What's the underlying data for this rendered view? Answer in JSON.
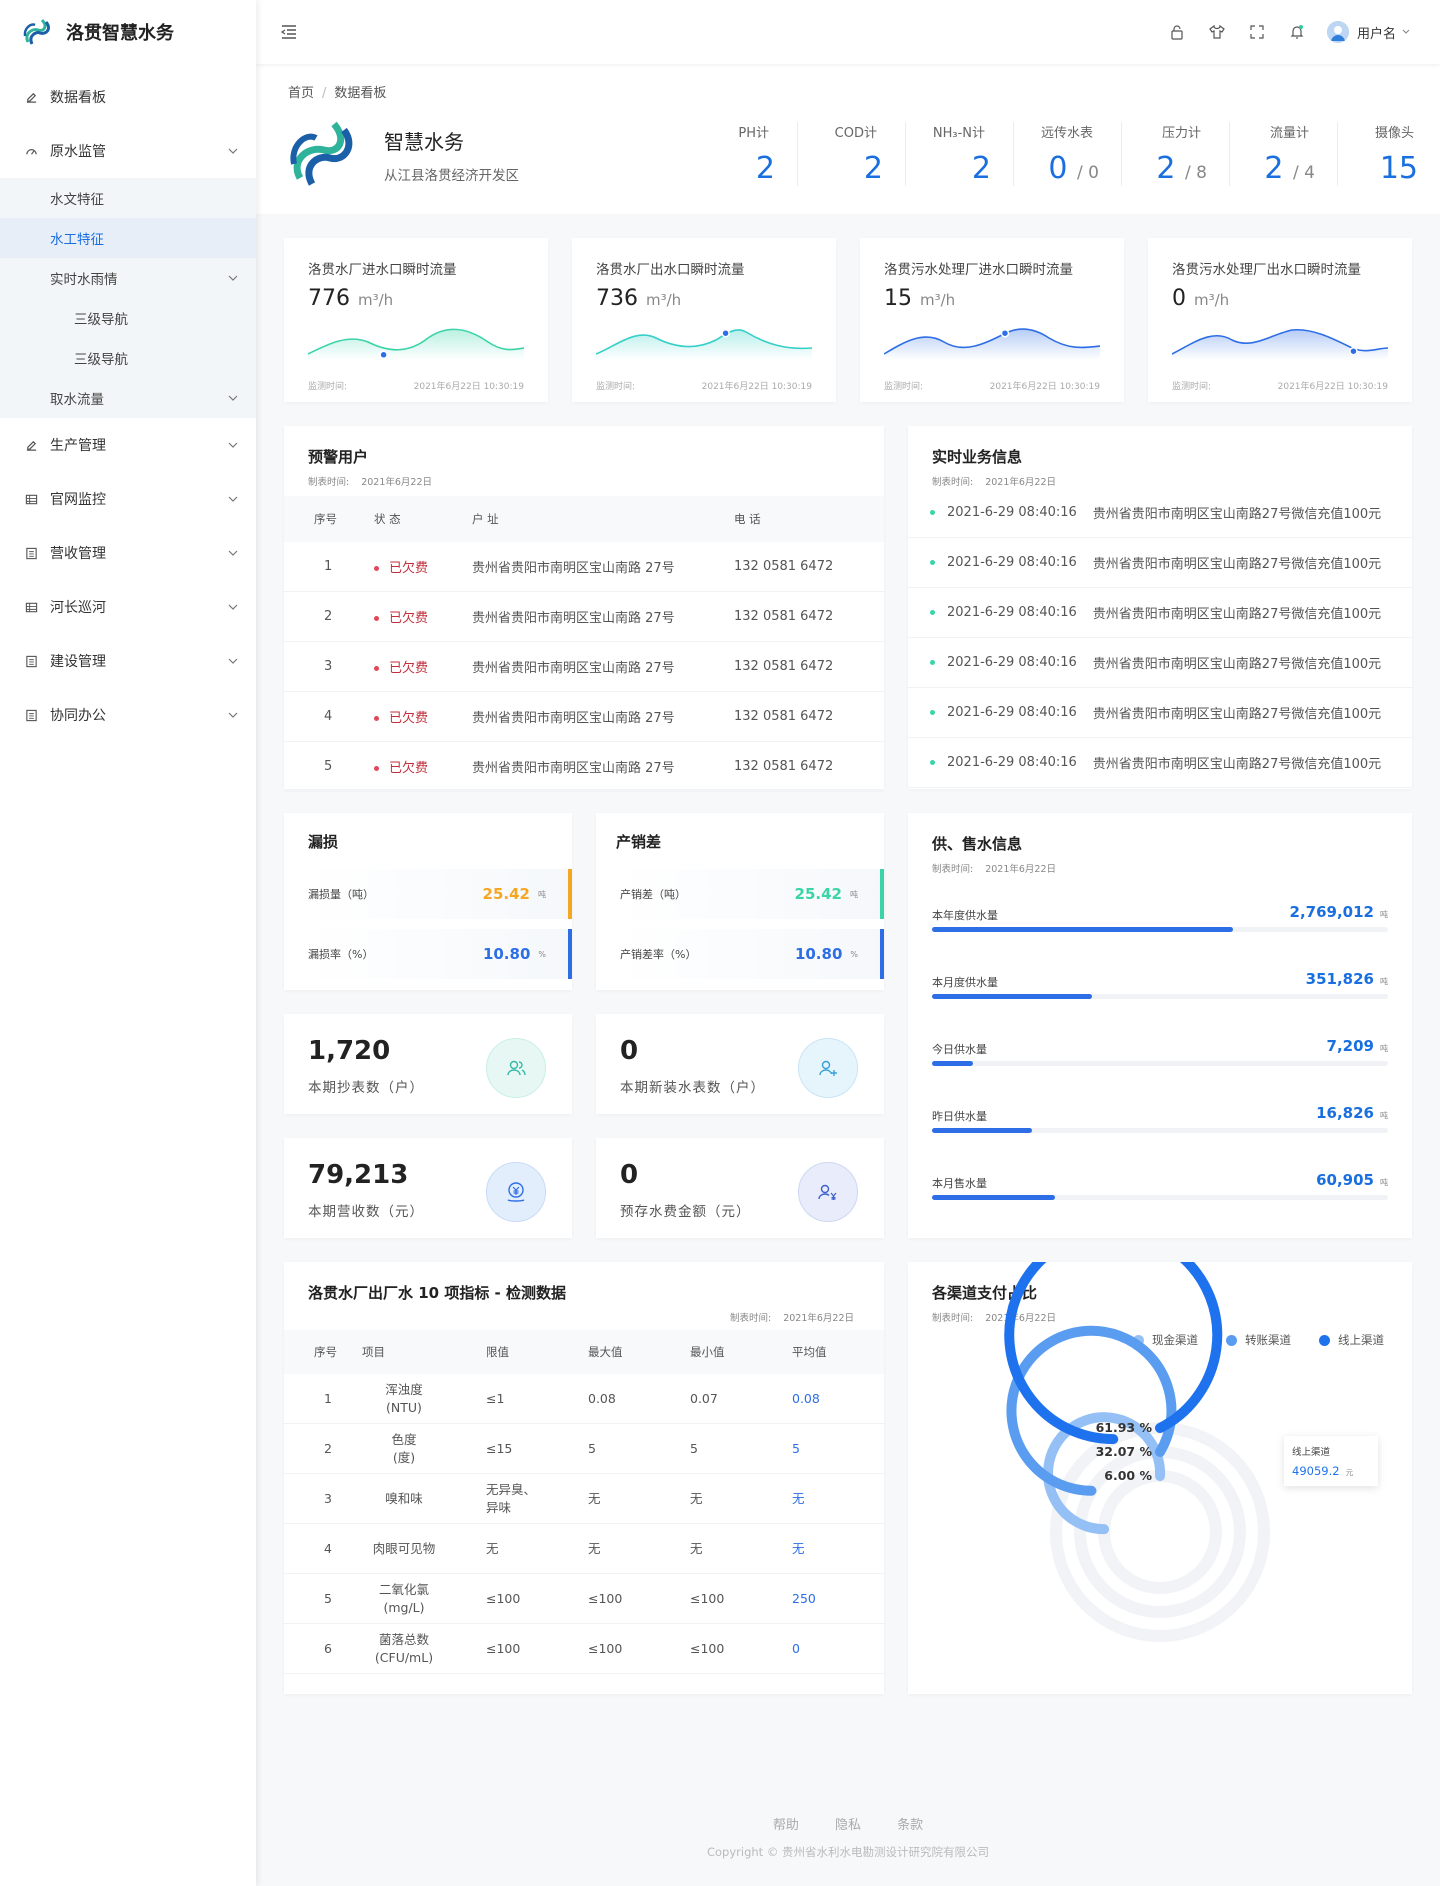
{
  "app": {
    "name": "洛贯智慧水务"
  },
  "sidebar": {
    "items": [
      {
        "label": "数据看板",
        "icon": "edit-icon"
      },
      {
        "label": "原水监管",
        "icon": "dashboard-icon"
      },
      {
        "label": "生产管理",
        "icon": "edit-icon"
      },
      {
        "label": "官网监控",
        "icon": "table-icon"
      },
      {
        "label": "营收管理",
        "icon": "list-icon"
      },
      {
        "label": "河长巡河",
        "icon": "table-icon"
      },
      {
        "label": "建设管理",
        "icon": "list-icon"
      },
      {
        "label": "协同办公",
        "icon": "list-icon"
      }
    ],
    "sub": [
      "水文特征",
      "水工特征",
      "实时水雨情",
      "三级导航",
      "三级导航",
      "取水流量"
    ]
  },
  "topbar": {
    "username": "用户名"
  },
  "breadcrumb": {
    "home": "首页",
    "sep": "/",
    "current": "数据看板"
  },
  "header": {
    "title": "智慧水务",
    "subtitle": "从江县洛贯经济开发区",
    "stats": [
      {
        "label": "PH计",
        "value": "2",
        "total": ""
      },
      {
        "label": "COD计",
        "value": "2",
        "total": ""
      },
      {
        "label": "NH₃-N计",
        "value": "2",
        "total": ""
      },
      {
        "label": "远传水表",
        "value": "0",
        "total": "/ 0"
      },
      {
        "label": "压力计",
        "value": "2",
        "total": "/ 8"
      },
      {
        "label": "流量计",
        "value": "2",
        "total": "/ 4"
      },
      {
        "label": "摄像头",
        "value": "15",
        "total": ""
      }
    ]
  },
  "flows": [
    {
      "label": "洛贯水厂进水口瞬时流量",
      "value": "776",
      "unit": "m³/h",
      "t1": "监测时间:",
      "t2": "2021年6月22日 10:30:19",
      "color": "#3ad4a8"
    },
    {
      "label": "洛贯水厂出水口瞬时流量",
      "value": "736",
      "unit": "m³/h",
      "t1": "监测时间:",
      "t2": "2021年6月22日 10:30:19",
      "color": "#34cfc7"
    },
    {
      "label": "洛贯污水处理厂进水口瞬时流量",
      "value": "15",
      "unit": "m³/h",
      "t1": "监测时间:",
      "t2": "2021年6月22日 10:30:19",
      "color": "#2d6ee6"
    },
    {
      "label": "洛贯污水处理厂出水口瞬时流量",
      "value": "0",
      "unit": "m³/h",
      "t1": "监测时间:",
      "t2": "2021年6月22日 10:30:19",
      "color": "#2d6ee6"
    }
  ],
  "warning": {
    "title": "预警用户",
    "meta_label": "制表时间:",
    "meta_date": "2021年6月22日",
    "headers": [
      "序号",
      "状 态",
      "户 址",
      "电 话"
    ],
    "rows": [
      {
        "no": "1",
        "status": "已欠费",
        "addr": "贵州省贵阳市南明区宝山南路 27号",
        "phone": "132 0581 6472"
      },
      {
        "no": "2",
        "status": "已欠费",
        "addr": "贵州省贵阳市南明区宝山南路 27号",
        "phone": "132 0581 6472"
      },
      {
        "no": "3",
        "status": "已欠费",
        "addr": "贵州省贵阳市南明区宝山南路 27号",
        "phone": "132 0581 6472"
      },
      {
        "no": "4",
        "status": "已欠费",
        "addr": "贵州省贵阳市南明区宝山南路 27号",
        "phone": "132 0581 6472"
      },
      {
        "no": "5",
        "status": "已欠费",
        "addr": "贵州省贵阳市南明区宝山南路 27号",
        "phone": "132 0581 6472"
      }
    ]
  },
  "business": {
    "title": "实时业务信息",
    "meta_label": "制表时间:",
    "meta_date": "2021年6月22日",
    "rows": [
      {
        "time": "2021-6-29 08:40:16",
        "text": "贵州省贵阳市南明区宝山南路27号微信充值100元"
      },
      {
        "time": "2021-6-29 08:40:16",
        "text": "贵州省贵阳市南明区宝山南路27号微信充值100元"
      },
      {
        "time": "2021-6-29 08:40:16",
        "text": "贵州省贵阳市南明区宝山南路27号微信充值100元"
      },
      {
        "time": "2021-6-29 08:40:16",
        "text": "贵州省贵阳市南明区宝山南路27号微信充值100元"
      },
      {
        "time": "2021-6-29 08:40:16",
        "text": "贵州省贵阳市南明区宝山南路27号微信充值100元"
      },
      {
        "time": "2021-6-29 08:40:16",
        "text": "贵州省贵阳市南明区宝山南路27号微信充值100元"
      }
    ]
  },
  "leak": {
    "title": "漏损",
    "a_label": "漏损量（吨）",
    "a_value": "25.42",
    "a_unit": "吨",
    "b_label": "漏损率（%）",
    "b_value": "10.80",
    "b_unit": "%"
  },
  "diff": {
    "title": "产销差",
    "a_label": "产销差（吨）",
    "a_value": "25.42",
    "a_unit": "吨",
    "b_label": "产销差率（%）",
    "b_value": "10.80",
    "b_unit": "%"
  },
  "numbers": [
    {
      "value": "1,720",
      "label": "本期抄表数（户）",
      "icon": "users-icon"
    },
    {
      "value": "0",
      "label": "本期新装水表数（户）",
      "icon": "add-user-icon"
    },
    {
      "value": "79,213",
      "label": "本期营收数（元）",
      "icon": "yuan-coin-icon"
    },
    {
      "value": "0",
      "label": "预存水费金额（元）",
      "icon": "user-yuan-icon"
    }
  ],
  "supply": {
    "title": "供、售水信息",
    "meta_label": "制表时间:",
    "meta_date": "2021年6月22日",
    "unit": "吨",
    "items": [
      {
        "label": "本年度供水量",
        "value": "2,769,012",
        "ratio": 0.66
      },
      {
        "label": "本月度供水量",
        "value": "351,826",
        "ratio": 0.35
      },
      {
        "label": "今日供水量",
        "value": "7,209",
        "ratio": 0.09
      },
      {
        "label": "昨日供水量",
        "value": "16,826",
        "ratio": 0.22
      },
      {
        "label": "本月售水量",
        "value": "60,905",
        "ratio": 0.27
      }
    ]
  },
  "quality": {
    "title": "洛贯水厂出厂水 10 项指标 - 检测数据",
    "meta_label": "制表时间:",
    "meta_date": "2021年6月22日",
    "headers": [
      "序号",
      "项目",
      "限值",
      "最大值",
      "最小值",
      "平均值"
    ],
    "rows": [
      {
        "no": "1",
        "item": "浑浊度\n(NTU)",
        "limit": "≤1",
        "max": "0.08",
        "min": "0.07",
        "avg": "0.08"
      },
      {
        "no": "2",
        "item": "色度\n(度)",
        "limit": "≤15",
        "max": "5",
        "min": "5",
        "avg": "5"
      },
      {
        "no": "3",
        "item": "嗅和味",
        "limit": "无异臭、\n异味",
        "max": "无",
        "min": "无",
        "avg": "无"
      },
      {
        "no": "4",
        "item": "肉眼可见物",
        "limit": "无",
        "max": "无",
        "min": "无",
        "avg": "无"
      },
      {
        "no": "5",
        "item": "二氧化氯\n(mg/L)",
        "limit": "≤100",
        "max": "≤100",
        "min": "≤100",
        "avg": "250"
      },
      {
        "no": "6",
        "item": "菌落总数\n(CFU/mL)",
        "limit": "≤100",
        "max": "≤100",
        "min": "≤100",
        "avg": "0"
      }
    ]
  },
  "payment": {
    "title": "各渠道支付占比",
    "meta_label": "制表时间:",
    "meta_date": "2021年6月22日",
    "tooltip_label": "线上渠道",
    "tooltip_value": "49059.2",
    "tooltip_unit": "元",
    "chart_data": {
      "type": "radial-bar",
      "series": [
        {
          "name": "现金渠道",
          "value": 6.0,
          "label": "6.00 %",
          "color": "#95c0f5"
        },
        {
          "name": "转账渠道",
          "value": 32.07,
          "label": "32.07 %",
          "color": "#5a9cf0"
        },
        {
          "name": "线上渠道",
          "value": 61.93,
          "label": "61.93 %",
          "color": "#1f72ee"
        }
      ]
    }
  },
  "footer": {
    "links": [
      "帮助",
      "隐私",
      "条款"
    ],
    "copyright": "Copyright © 贵州省水利水电勘测设计研究院有限公司"
  }
}
